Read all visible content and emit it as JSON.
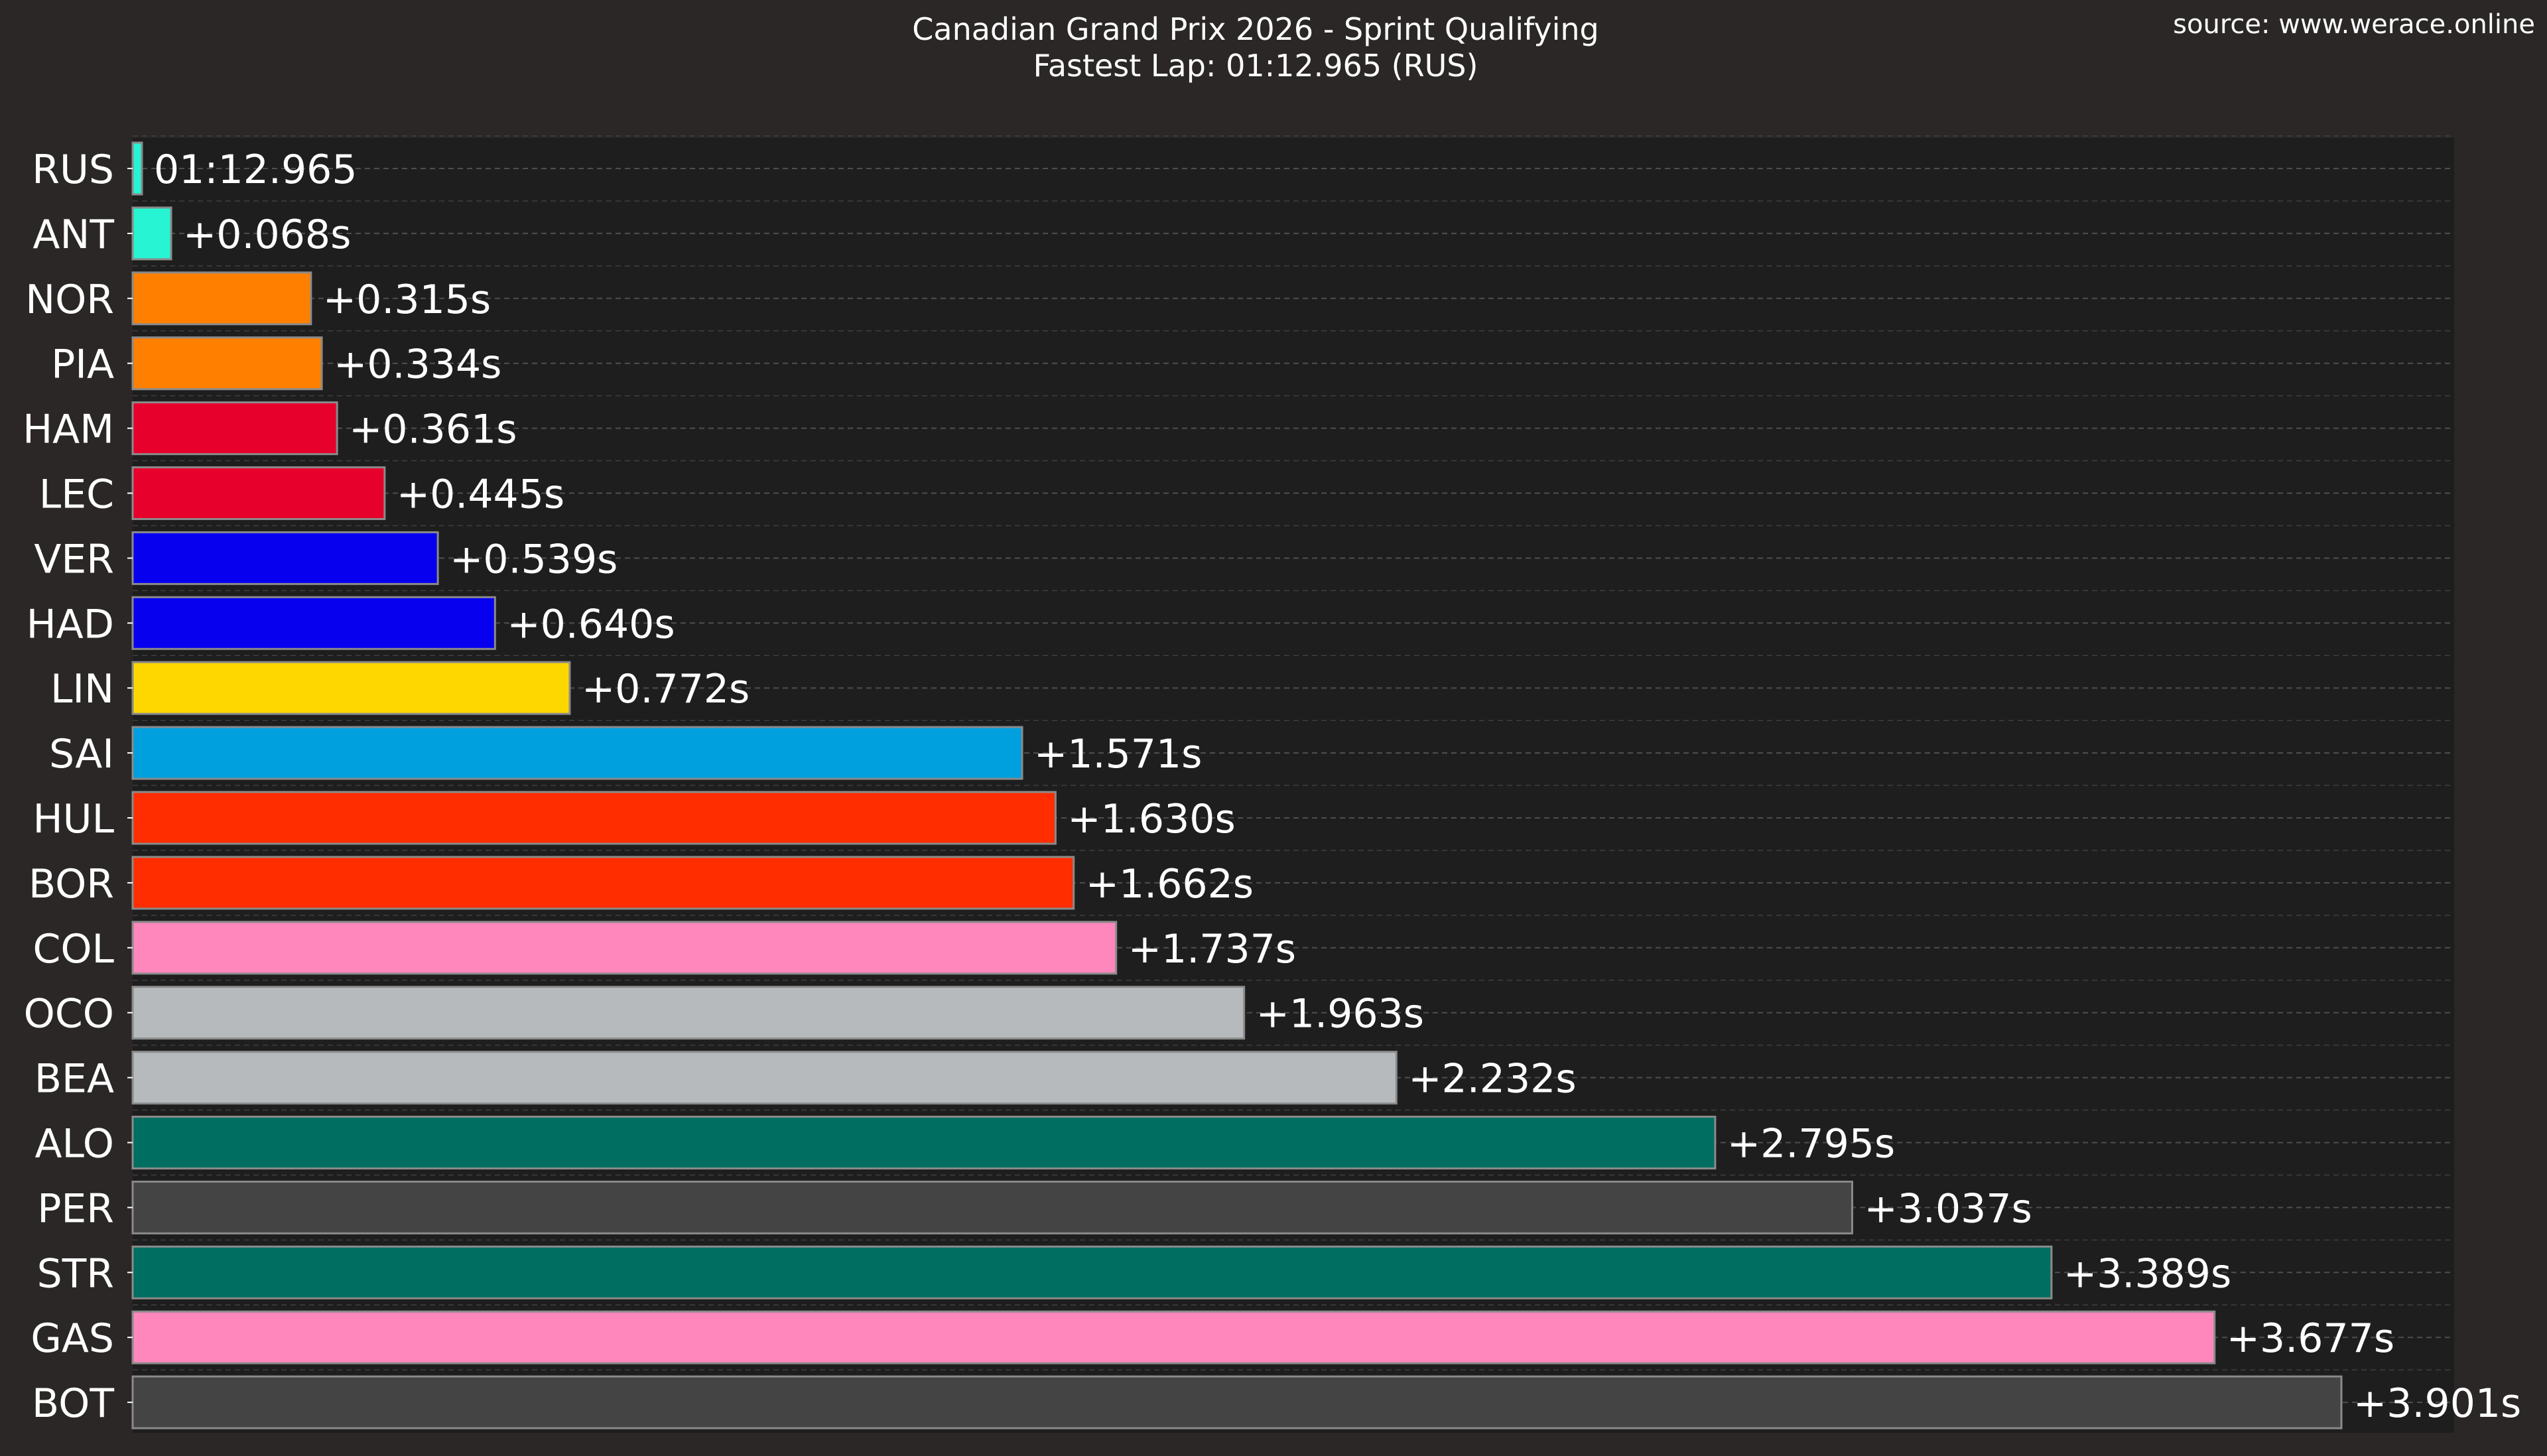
{
  "chart_data": {
    "type": "bar",
    "orientation": "horizontal",
    "title": "Canadian Grand Prix 2026 - Sprint Qualifying",
    "subtitle": "Fastest Lap: 01:12.965 (RUS)",
    "source": "source: www.werace.online",
    "xlabel": "",
    "ylabel": "",
    "xlim": [
      0,
      3.901
    ],
    "grid": "horizontal-dashed",
    "unit": "s",
    "categories": [
      "RUS",
      "ANT",
      "NOR",
      "PIA",
      "HAM",
      "LEC",
      "VER",
      "HAD",
      "LIN",
      "SAI",
      "HUL",
      "BOR",
      "COL",
      "OCO",
      "BEA",
      "ALO",
      "PER",
      "STR",
      "GAS",
      "BOT"
    ],
    "values": [
      0,
      0.068,
      0.315,
      0.334,
      0.361,
      0.445,
      0.539,
      0.64,
      0.772,
      1.571,
      1.63,
      1.662,
      1.737,
      1.963,
      2.232,
      2.795,
      3.037,
      3.389,
      3.677,
      3.901
    ],
    "labels": [
      "01:12.965",
      "+0.068s",
      "+0.315s",
      "+0.334s",
      "+0.361s",
      "+0.445s",
      "+0.539s",
      "+0.640s",
      "+0.772s",
      "+1.571s",
      "+1.630s",
      "+1.662s",
      "+1.737s",
      "+1.963s",
      "+2.232s",
      "+2.795s",
      "+3.037s",
      "+3.389s",
      "+3.677s",
      "+3.901s"
    ],
    "colors": [
      "#27f4d2",
      "#27f4d2",
      "#ff8000",
      "#ff8000",
      "#e8002d",
      "#e8002d",
      "#0600ef",
      "#0600ef",
      "#ffd700",
      "#00a0de",
      "#ff2d00",
      "#ff2d00",
      "#ff87bc",
      "#b6babd",
      "#b6babd",
      "#006f62",
      "#444444",
      "#006f62",
      "#ff87bc",
      "#444444"
    ]
  },
  "colors": {
    "page_background": "#2a2726",
    "plot_background": "#1e1e1e",
    "text": "#ffffff",
    "grid": "#555555",
    "bar_edge": "#8a8a8a"
  }
}
